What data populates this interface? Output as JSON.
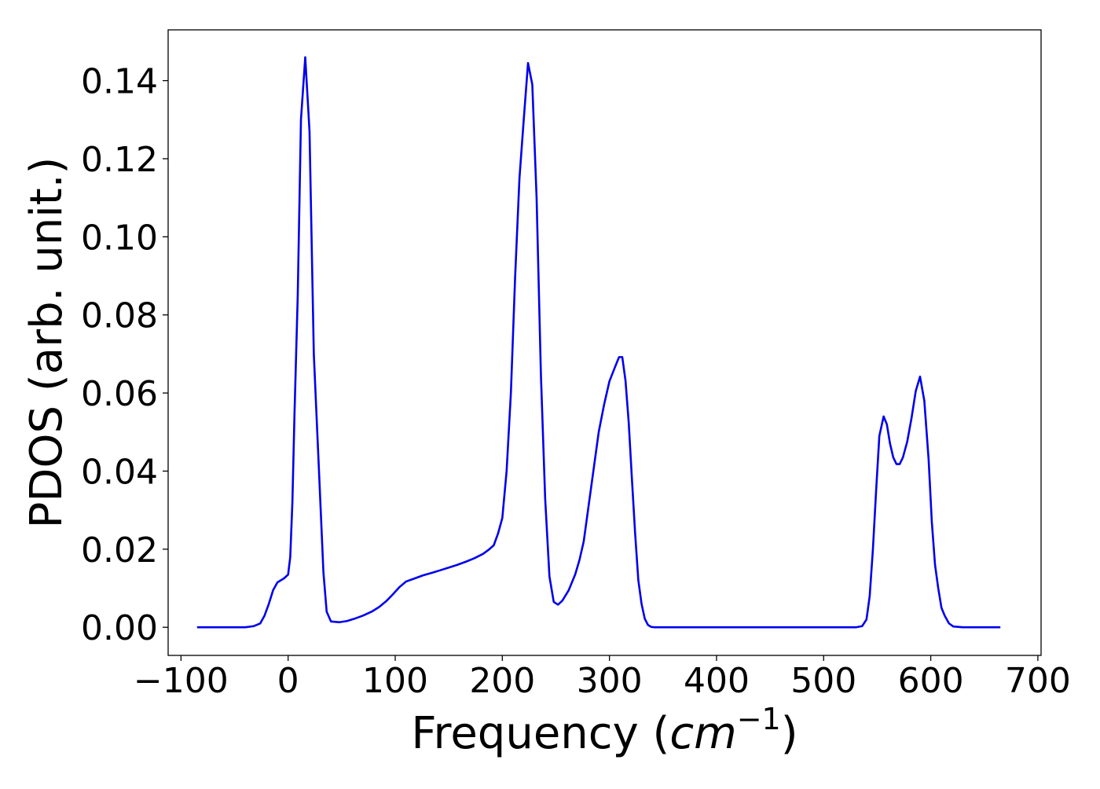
{
  "chart_data": {
    "type": "line",
    "title": "",
    "xlabel": "Frequency",
    "xlabel_unit": "cm",
    "xlabel_unit_exponent": "−1",
    "ylabel": "PDOS (arb. unit.)",
    "xlim": [
      -112,
      703
    ],
    "ylim": [
      -0.0072,
      0.153
    ],
    "xticks": [
      -100,
      0,
      100,
      200,
      300,
      400,
      500,
      600,
      700
    ],
    "xtick_labels": [
      "−100",
      "0",
      "100",
      "200",
      "300",
      "400",
      "500",
      "600",
      "700"
    ],
    "yticks": [
      0.0,
      0.02,
      0.04,
      0.06,
      0.08,
      0.1,
      0.12,
      0.14
    ],
    "ytick_labels": [
      "0.00",
      "0.02",
      "0.04",
      "0.06",
      "0.08",
      "0.10",
      "0.12",
      "0.14"
    ],
    "grid": false,
    "legend": "none",
    "series": [
      {
        "color": "#0000ee",
        "x": [
          -85,
          -40,
          -32,
          -26,
          -22,
          -18,
          -14,
          -10,
          -4,
          0,
          2,
          4,
          6,
          9,
          12,
          16,
          20,
          24,
          29,
          33,
          36,
          40,
          48,
          55,
          62,
          70,
          78,
          85,
          92,
          98,
          104,
          110,
          118,
          126,
          135,
          142,
          150,
          158,
          166,
          174,
          182,
          187,
          192,
          196,
          200,
          204,
          208,
          212,
          216,
          220,
          224,
          228,
          232,
          236,
          240,
          244,
          248,
          252,
          256,
          262,
          268,
          272,
          276,
          280,
          285,
          290,
          295,
          300,
          305,
          309,
          312,
          315,
          318,
          321,
          324,
          327,
          330,
          333,
          336,
          339,
          342,
          346,
          352,
          400,
          450,
          500,
          530,
          536,
          540,
          543,
          546,
          549,
          552,
          556,
          559,
          562,
          565,
          568,
          571,
          574,
          578,
          582,
          586,
          590,
          594,
          598,
          601,
          604,
          607,
          610,
          613,
          617,
          621,
          630,
          665
        ],
        "y": [
          0.0,
          0.0,
          0.0003,
          0.001,
          0.003,
          0.006,
          0.0095,
          0.0115,
          0.0125,
          0.0135,
          0.018,
          0.032,
          0.055,
          0.085,
          0.13,
          0.146,
          0.127,
          0.07,
          0.039,
          0.014,
          0.004,
          0.0015,
          0.0013,
          0.0016,
          0.0022,
          0.003,
          0.004,
          0.0052,
          0.0068,
          0.0085,
          0.0103,
          0.0117,
          0.0125,
          0.0133,
          0.014,
          0.0146,
          0.0153,
          0.016,
          0.0168,
          0.0177,
          0.0188,
          0.0198,
          0.021,
          0.024,
          0.028,
          0.04,
          0.06,
          0.09,
          0.115,
          0.13,
          0.1445,
          0.139,
          0.11,
          0.065,
          0.033,
          0.013,
          0.0065,
          0.0058,
          0.0068,
          0.0095,
          0.0135,
          0.0172,
          0.022,
          0.03,
          0.04,
          0.05,
          0.057,
          0.063,
          0.0665,
          0.0692,
          0.0692,
          0.0632,
          0.0525,
          0.038,
          0.024,
          0.012,
          0.006,
          0.0022,
          0.0006,
          0.0001,
          0.0,
          0.0,
          0.0,
          0.0,
          0.0,
          0.0,
          0.0,
          0.0003,
          0.002,
          0.008,
          0.02,
          0.035,
          0.049,
          0.054,
          0.052,
          0.047,
          0.0435,
          0.0418,
          0.0418,
          0.0435,
          0.0475,
          0.0535,
          0.0605,
          0.0642,
          0.058,
          0.043,
          0.027,
          0.016,
          0.01,
          0.005,
          0.003,
          0.001,
          0.0002,
          0.0,
          0.0
        ]
      }
    ]
  }
}
